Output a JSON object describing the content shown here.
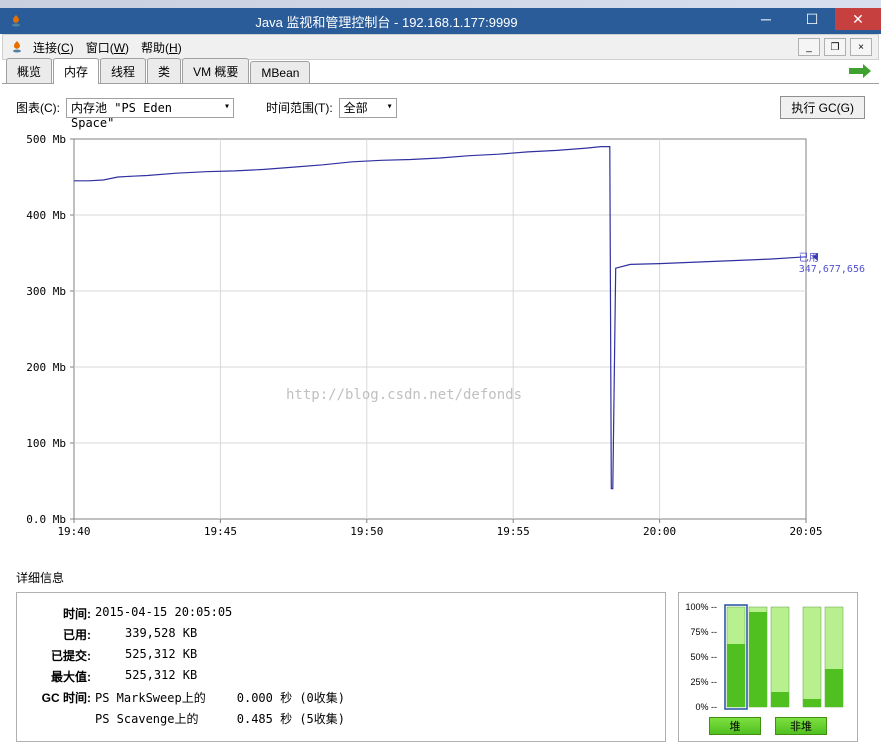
{
  "titlebar": {
    "title": "Java 监视和管理控制台 - 192.168.1.177:9999"
  },
  "menubar": {
    "items": [
      {
        "label": "连接",
        "key": "C"
      },
      {
        "label": "窗口",
        "key": "W"
      },
      {
        "label": "帮助",
        "key": "H"
      }
    ]
  },
  "tabs": {
    "items": [
      "概览",
      "内存",
      "线程",
      "类",
      "VM 概要",
      "MBean"
    ],
    "active": 1
  },
  "controls": {
    "chart_label": "图表(C):",
    "chart_select": "内存池 \"PS Eden Space\"",
    "range_label": "时间范围(T):",
    "range_select": "全部",
    "gc_button": "执行 GC(G)"
  },
  "chart": {
    "y_ticks": [
      "500 Mb",
      "400 Mb",
      "300 Mb",
      "200 Mb",
      "100 Mb",
      "0.0 Mb"
    ],
    "x_ticks": [
      "19:40",
      "19:45",
      "19:50",
      "19:55",
      "20:00",
      "20:05"
    ],
    "line_color": "#3030a0",
    "grid_color": "#d8d8d8",
    "axis_color": "#808080",
    "used_label": "已用",
    "used_value": "347,677,656",
    "watermark": "http://blog.csdn.net/defonds",
    "series_x": [
      0,
      2,
      4,
      6,
      8,
      10,
      14,
      18,
      22,
      26,
      30,
      34,
      38,
      42,
      46,
      50,
      54,
      58,
      62,
      66,
      70,
      72,
      73.2,
      73.4,
      73.6,
      74,
      76,
      80,
      85,
      90,
      95,
      100
    ],
    "series_y": [
      445,
      445,
      446,
      450,
      451,
      452,
      455,
      457,
      458,
      460,
      463,
      466,
      470,
      472,
      473,
      475,
      478,
      480,
      483,
      485,
      488,
      490,
      490,
      40,
      40,
      330,
      335,
      336,
      338,
      340,
      342,
      345
    ],
    "x_min": 0,
    "x_max": 100,
    "y_min": 0,
    "y_max": 500
  },
  "details": {
    "title": "详细信息",
    "rows": [
      {
        "label": "时间:",
        "value": "2015-04-15 20:05:05"
      },
      {
        "label": "已用:",
        "value": "339,528 KB"
      },
      {
        "label": "已提交:",
        "value": "525,312 KB"
      },
      {
        "label": "最大值:",
        "value": "525,312 KB"
      }
    ],
    "gc_label": "GC 时间:",
    "gc_rows": [
      {
        "name": "PS MarkSweep上的",
        "time": "0.000 秒 (0收集)"
      },
      {
        "name": "PS Scavenge上的",
        "time": "0.485 秒 (5收集)"
      }
    ]
  },
  "bars": {
    "y_ticks": [
      "100%",
      "75%",
      "50%",
      "25%",
      "0%"
    ],
    "heap_values": [
      63,
      95,
      15
    ],
    "nonheap_values": [
      8,
      38
    ],
    "selected_index": 0,
    "fill_color": "#50c020",
    "light_color": "#b8f090",
    "button_heap": "堆",
    "button_nonheap": "非堆"
  }
}
